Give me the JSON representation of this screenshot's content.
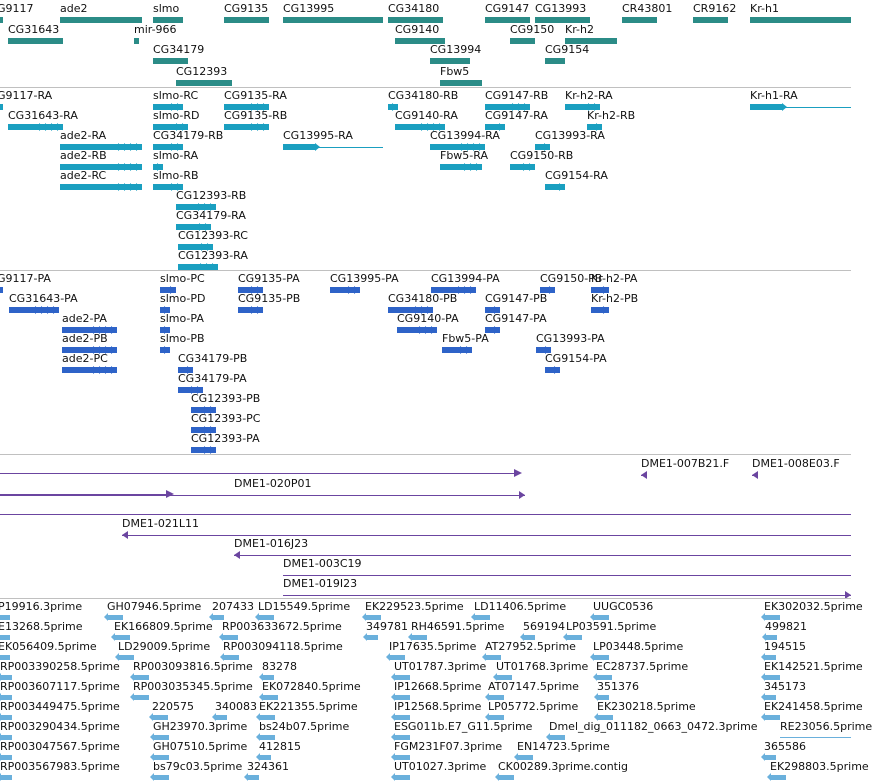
{
  "colors": {
    "gene": "#2b8c87",
    "transcript": "#1a9fc0",
    "protein": "#2e63c8",
    "bac": "#6b45a0",
    "est": "#6ab0dc",
    "separator": "#c0c0c0"
  },
  "tracks": {
    "genes": [
      {
        "label": "G9117"
      },
      {
        "label": "ade2"
      },
      {
        "label": "slmo"
      },
      {
        "label": "CG9135"
      },
      {
        "label": "CG13995"
      },
      {
        "label": "CG34180"
      },
      {
        "label": "CG9147"
      },
      {
        "label": "CG13993"
      },
      {
        "label": "CR43801"
      },
      {
        "label": "CR9162"
      },
      {
        "label": "Kr-h1"
      },
      {
        "label": "CG31643"
      },
      {
        "label": "mir-966"
      },
      {
        "label": "CG9140"
      },
      {
        "label": "CG9150"
      },
      {
        "label": "Kr-h2"
      },
      {
        "label": "CG34179"
      },
      {
        "label": "CG13994"
      },
      {
        "label": "CG9154"
      },
      {
        "label": "CG12393"
      },
      {
        "label": "Fbw5"
      }
    ],
    "transcripts": [
      {
        "label": "G9117-RA"
      },
      {
        "label": "slmo-RC"
      },
      {
        "label": "CG9135-RA"
      },
      {
        "label": "CG34180-RB"
      },
      {
        "label": "CG9147-RB"
      },
      {
        "label": "Kr-h2-RA"
      },
      {
        "label": "Kr-h1-RA"
      },
      {
        "label": "CG31643-RA"
      },
      {
        "label": "slmo-RD"
      },
      {
        "label": "CG9135-RB"
      },
      {
        "label": "CG9140-RA"
      },
      {
        "label": "CG9147-RA"
      },
      {
        "label": "Kr-h2-RB"
      },
      {
        "label": "ade2-RA"
      },
      {
        "label": "CG34179-RB"
      },
      {
        "label": "CG13995-RA"
      },
      {
        "label": "CG13994-RA"
      },
      {
        "label": "CG13993-RA"
      },
      {
        "label": "ade2-RB"
      },
      {
        "label": "slmo-RA"
      },
      {
        "label": "Fbw5-RA"
      },
      {
        "label": "CG9150-RB"
      },
      {
        "label": "ade2-RC"
      },
      {
        "label": "slmo-RB"
      },
      {
        "label": "CG9154-RA"
      },
      {
        "label": "CG12393-RB"
      },
      {
        "label": "CG34179-RA"
      },
      {
        "label": "CG12393-RC"
      },
      {
        "label": "CG12393-RA"
      }
    ],
    "proteins": [
      {
        "label": "G9117-PA"
      },
      {
        "label": "slmo-PC"
      },
      {
        "label": "CG9135-PA"
      },
      {
        "label": "CG13995-PA"
      },
      {
        "label": "CG13994-PA"
      },
      {
        "label": "CG9150-PB"
      },
      {
        "label": "Kr-h2-PA"
      },
      {
        "label": "CG31643-PA"
      },
      {
        "label": "slmo-PD"
      },
      {
        "label": "CG9135-PB"
      },
      {
        "label": "CG34180-PB"
      },
      {
        "label": "CG9147-PB"
      },
      {
        "label": "Kr-h2-PB"
      },
      {
        "label": "ade2-PA"
      },
      {
        "label": "slmo-PA"
      },
      {
        "label": "CG9140-PA"
      },
      {
        "label": "CG9147-PA"
      },
      {
        "label": "ade2-PB"
      },
      {
        "label": "slmo-PB"
      },
      {
        "label": "Fbw5-PA"
      },
      {
        "label": "CG13993-PA"
      },
      {
        "label": "ade2-PC"
      },
      {
        "label": "CG34179-PB"
      },
      {
        "label": "CG9154-PA"
      },
      {
        "label": "CG34179-PA"
      },
      {
        "label": "CG12393-PB"
      },
      {
        "label": "CG12393-PC"
      },
      {
        "label": "CG12393-PA"
      }
    ],
    "bacs": [
      {
        "label": "DME1-007B21.F"
      },
      {
        "label": "DME1-008E03.F"
      },
      {
        "label": "DME1-020P01"
      },
      {
        "label": "DME1-021L11"
      },
      {
        "label": "DME1-016J23"
      },
      {
        "label": "DME1-003C19"
      },
      {
        "label": "DME1-019I23"
      }
    ],
    "ests": [
      {
        "label": "P19916.3prime"
      },
      {
        "label": "GH07946.5prime"
      },
      {
        "label": "207433"
      },
      {
        "label": "LD15549.5prime"
      },
      {
        "label": "EK229523.5prime"
      },
      {
        "label": "LD11406.5prime"
      },
      {
        "label": "UUGC0536"
      },
      {
        "label": "EK302032.5prime"
      },
      {
        "label": "E13268.5prime"
      },
      {
        "label": "EK166809.5prime"
      },
      {
        "label": "RP003633672.5prime"
      },
      {
        "label": "349781"
      },
      {
        "label": "RH46591.5prime"
      },
      {
        "label": "569194"
      },
      {
        "label": "LP03591.5prime"
      },
      {
        "label": "499821"
      },
      {
        "label": "EK056409.5prime"
      },
      {
        "label": "LD29009.5prime"
      },
      {
        "label": "RP003094118.5prime"
      },
      {
        "label": "IP17635.5prime"
      },
      {
        "label": "AT27952.5prime"
      },
      {
        "label": "LP03448.5prime"
      },
      {
        "label": "194515"
      },
      {
        "label": "RP003390258.5prime"
      },
      {
        "label": "RP003093816.5prime"
      },
      {
        "label": "83278"
      },
      {
        "label": "UT01787.3prime"
      },
      {
        "label": "UT01768.3prime"
      },
      {
        "label": "EC28737.5prime"
      },
      {
        "label": "EK142521.5prime"
      },
      {
        "label": "RP003607117.5prime"
      },
      {
        "label": "RP003035345.5prime"
      },
      {
        "label": "EK072840.5prime"
      },
      {
        "label": "IP12668.5prime"
      },
      {
        "label": "AT07147.5prime"
      },
      {
        "label": "351376"
      },
      {
        "label": "345173"
      },
      {
        "label": "RP003449475.5prime"
      },
      {
        "label": "220575"
      },
      {
        "label": "340083"
      },
      {
        "label": "EK221355.5prime"
      },
      {
        "label": "IP12568.5prime"
      },
      {
        "label": "LP05772.5prime"
      },
      {
        "label": "EK230218.5prime"
      },
      {
        "label": "EK241458.5prime"
      },
      {
        "label": "RP003290434.5prime"
      },
      {
        "label": "GH23970.3prime"
      },
      {
        "label": "bs24b07.5prime"
      },
      {
        "label": "ESG011b.E7_G11.5prime"
      },
      {
        "label": "Dmel_dig_011182_0663_0472.3prime"
      },
      {
        "label": "RE23056.5prime"
      },
      {
        "label": "RP003047567.5prime"
      },
      {
        "label": "GH07510.5prime"
      },
      {
        "label": "412815"
      },
      {
        "label": "FGM231F07.3prime"
      },
      {
        "label": "EN14723.5prime"
      },
      {
        "label": "365586"
      },
      {
        "label": "RP003567983.5prime"
      },
      {
        "label": "bs79c03.5prime"
      },
      {
        "label": "324361"
      },
      {
        "label": "UT01027.3prime"
      },
      {
        "label": "CK00289.3prime.contig"
      },
      {
        "label": "EK298803.5prime"
      }
    ]
  }
}
